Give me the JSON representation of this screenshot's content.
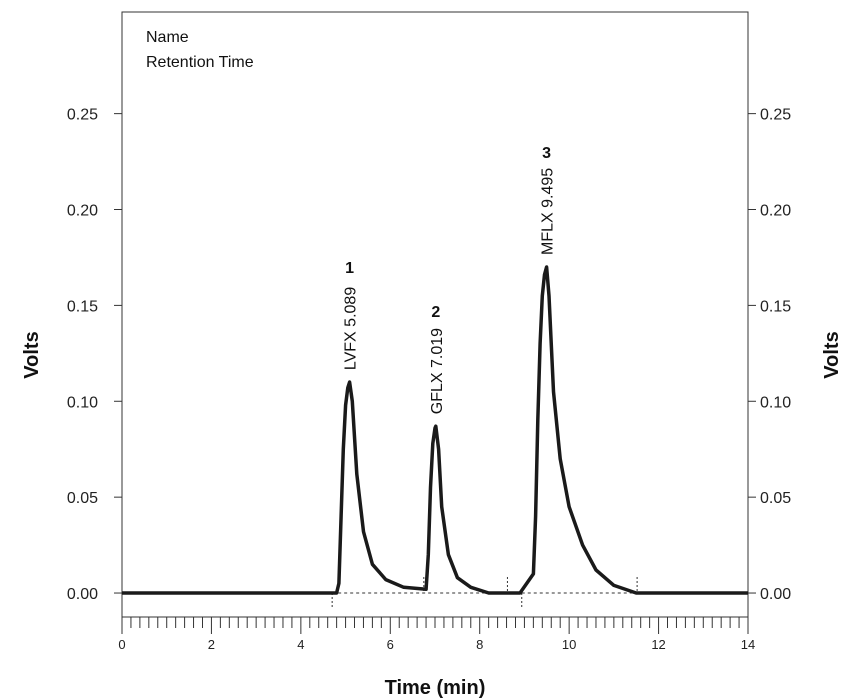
{
  "chart_data": {
    "type": "line",
    "xlabel": "Time (min)",
    "ylabel": "Volts",
    "xlim": [
      0,
      14
    ],
    "ylim": [
      -0.0125,
      0.303
    ],
    "x_ticks": [
      "0",
      "2",
      "4",
      "6",
      "8",
      "10",
      "12",
      "14"
    ],
    "y_ticks": [
      "0.00",
      "0.05",
      "0.10",
      "0.15",
      "0.20",
      "0.25"
    ],
    "legend_lines": [
      "Name",
      "Retention Time"
    ],
    "grid": false,
    "peaks": [
      {
        "number": "1",
        "name": "LVFX",
        "retention_time": 5.089,
        "label": "LVFX 5.089",
        "height": 0.11
      },
      {
        "number": "2",
        "name": "GFLX",
        "retention_time": 7.019,
        "label": "GFLX 7.019",
        "height": 0.087
      },
      {
        "number": "3",
        "name": "MFLX",
        "retention_time": 9.495,
        "label": "MFLX 9.495",
        "height": 0.17
      }
    ],
    "integration_marks": [
      {
        "x": 4.7,
        "type": "start"
      },
      {
        "x": 6.75,
        "type": "split"
      },
      {
        "x": 8.62,
        "type": "end"
      },
      {
        "x": 8.94,
        "type": "start"
      },
      {
        "x": 11.52,
        "type": "end"
      }
    ],
    "series": [
      {
        "x": [
          0,
          4.8,
          4.85,
          4.9,
          4.95,
          5.0,
          5.05,
          5.089,
          5.15,
          5.25,
          5.4,
          5.6,
          5.9,
          6.3,
          6.8,
          6.85,
          6.9,
          6.95,
          7.0,
          7.019,
          7.08,
          7.15,
          7.3,
          7.5,
          7.8,
          8.2,
          8.9,
          9.2,
          9.25,
          9.3,
          9.35,
          9.4,
          9.45,
          9.495,
          9.55,
          9.65,
          9.8,
          10.0,
          10.3,
          10.6,
          11.0,
          11.5,
          12.0,
          14.0
        ],
        "y": [
          0.0,
          0.0,
          0.005,
          0.04,
          0.075,
          0.098,
          0.107,
          0.11,
          0.1,
          0.062,
          0.032,
          0.015,
          0.007,
          0.003,
          0.002,
          0.02,
          0.055,
          0.078,
          0.086,
          0.087,
          0.075,
          0.045,
          0.02,
          0.008,
          0.003,
          0.0,
          0.0,
          0.01,
          0.04,
          0.09,
          0.13,
          0.155,
          0.166,
          0.17,
          0.155,
          0.105,
          0.07,
          0.045,
          0.025,
          0.012,
          0.004,
          0.0,
          0.0,
          0.0
        ]
      }
    ]
  }
}
